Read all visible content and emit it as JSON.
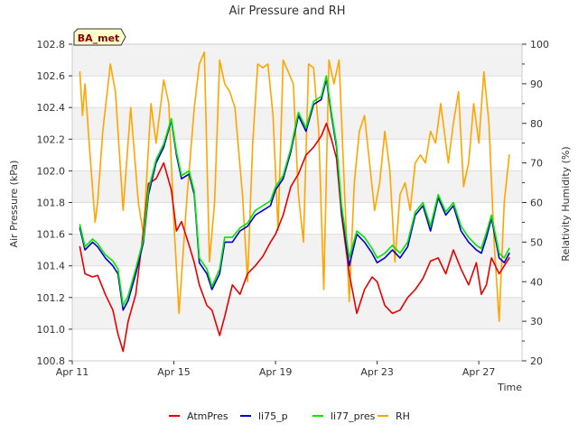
{
  "chart_data": {
    "type": "line",
    "title": "Air Pressure and RH",
    "site_badge": "BA_met",
    "xlabel": "Time",
    "ylabel_left": "Air Pressure (kPa)",
    "ylabel_right": "Relativity Humidity (%)",
    "xlim": [
      0,
      17.7
    ],
    "x_ticks": [
      {
        "x": 0,
        "label": "Apr 11"
      },
      {
        "x": 4,
        "label": "Apr 15"
      },
      {
        "x": 8,
        "label": "Apr 19"
      },
      {
        "x": 12,
        "label": "Apr 23"
      },
      {
        "x": 16,
        "label": "Apr 27"
      }
    ],
    "ylim_left": [
      100.8,
      102.8
    ],
    "yticks_left": [
      "100.8",
      "101.0",
      "101.2",
      "101.4",
      "101.6",
      "101.8",
      "102.0",
      "102.2",
      "102.4",
      "102.6",
      "102.8"
    ],
    "ylim_right": [
      20,
      100
    ],
    "yticks_right": [
      "20",
      "30",
      "40",
      "50",
      "60",
      "70",
      "80",
      "90",
      "100"
    ],
    "grid": true,
    "legend_position": "bottom",
    "series": [
      {
        "name": "AtmPres",
        "axis": "left",
        "color": "#e60000",
        "x": [
          0.3,
          0.5,
          0.8,
          1.0,
          1.3,
          1.6,
          1.8,
          2.0,
          2.2,
          2.5,
          2.8,
          3.0,
          3.3,
          3.6,
          3.9,
          4.1,
          4.3,
          4.6,
          4.8,
          5.0,
          5.3,
          5.5,
          5.8,
          6.0,
          6.3,
          6.6,
          6.9,
          7.2,
          7.5,
          7.8,
          8.0,
          8.3,
          8.6,
          8.9,
          9.2,
          9.5,
          9.8,
          10.0,
          10.2,
          10.4,
          10.6,
          10.9,
          11.2,
          11.5,
          11.8,
          12.0,
          12.3,
          12.6,
          12.9,
          13.2,
          13.5,
          13.8,
          14.1,
          14.4,
          14.7,
          15.0,
          15.3,
          15.6,
          15.9,
          16.1,
          16.3,
          16.5,
          16.8,
          17.0,
          17.2
        ],
        "values": [
          101.52,
          101.35,
          101.33,
          101.34,
          101.22,
          101.12,
          100.97,
          100.86,
          101.05,
          101.22,
          101.62,
          101.92,
          101.95,
          102.05,
          101.88,
          101.62,
          101.68,
          101.53,
          101.42,
          101.28,
          101.15,
          101.12,
          100.96,
          101.08,
          101.28,
          101.22,
          101.35,
          101.4,
          101.46,
          101.55,
          101.6,
          101.72,
          101.9,
          101.98,
          102.1,
          102.15,
          102.22,
          102.3,
          102.2,
          102.08,
          101.72,
          101.35,
          101.1,
          101.25,
          101.33,
          101.3,
          101.15,
          101.1,
          101.12,
          101.2,
          101.25,
          101.32,
          101.43,
          101.45,
          101.35,
          101.5,
          101.38,
          101.28,
          101.42,
          101.22,
          101.28,
          101.45,
          101.35,
          101.4,
          101.45
        ]
      },
      {
        "name": "li75_p",
        "axis": "left",
        "color": "#0000cc",
        "x": [
          0.3,
          0.5,
          0.8,
          1.0,
          1.3,
          1.6,
          1.8,
          2.0,
          2.2,
          2.5,
          2.8,
          3.0,
          3.3,
          3.6,
          3.9,
          4.1,
          4.3,
          4.6,
          4.8,
          5.0,
          5.3,
          5.5,
          5.8,
          6.0,
          6.3,
          6.6,
          6.9,
          7.2,
          7.5,
          7.8,
          8.0,
          8.3,
          8.6,
          8.9,
          9.2,
          9.5,
          9.8,
          10.0,
          10.2,
          10.4,
          10.6,
          10.9,
          11.2,
          11.5,
          11.8,
          12.0,
          12.3,
          12.6,
          12.9,
          13.2,
          13.5,
          13.8,
          14.1,
          14.4,
          14.7,
          15.0,
          15.3,
          15.6,
          15.9,
          16.1,
          16.3,
          16.5,
          16.8,
          17.0,
          17.2
        ],
        "values": [
          101.64,
          101.5,
          101.55,
          101.52,
          101.45,
          101.4,
          101.35,
          101.12,
          101.18,
          101.35,
          101.55,
          101.85,
          102.05,
          102.15,
          102.32,
          102.1,
          101.95,
          101.98,
          101.85,
          101.42,
          101.35,
          101.25,
          101.35,
          101.55,
          101.55,
          101.62,
          101.65,
          101.72,
          101.75,
          101.78,
          101.88,
          101.95,
          102.12,
          102.35,
          102.25,
          102.42,
          102.45,
          102.58,
          102.35,
          102.15,
          101.75,
          101.4,
          101.6,
          101.55,
          101.48,
          101.42,
          101.45,
          101.5,
          101.45,
          101.52,
          101.72,
          101.78,
          101.62,
          101.83,
          101.72,
          101.78,
          101.62,
          101.55,
          101.5,
          101.48,
          101.58,
          101.7,
          101.45,
          101.42,
          101.48
        ]
      },
      {
        "name": "li77_pres",
        "axis": "left",
        "color": "#00e600",
        "x": [
          0.3,
          0.5,
          0.8,
          1.0,
          1.3,
          1.6,
          1.8,
          2.0,
          2.2,
          2.5,
          2.8,
          3.0,
          3.3,
          3.6,
          3.9,
          4.1,
          4.3,
          4.6,
          4.8,
          5.0,
          5.3,
          5.5,
          5.8,
          6.0,
          6.3,
          6.6,
          6.9,
          7.2,
          7.5,
          7.8,
          8.0,
          8.3,
          8.6,
          8.9,
          9.2,
          9.5,
          9.8,
          10.0,
          10.2,
          10.4,
          10.6,
          10.9,
          11.2,
          11.5,
          11.8,
          12.0,
          12.3,
          12.6,
          12.9,
          13.2,
          13.5,
          13.8,
          14.1,
          14.4,
          14.7,
          15.0,
          15.3,
          15.6,
          15.9,
          16.1,
          16.3,
          16.5,
          16.8,
          17.0,
          17.2
        ],
        "values": [
          101.66,
          101.52,
          101.57,
          101.54,
          101.47,
          101.43,
          101.38,
          101.15,
          101.21,
          101.38,
          101.57,
          101.88,
          102.07,
          102.17,
          102.33,
          102.12,
          101.97,
          102.0,
          101.87,
          101.45,
          101.38,
          101.27,
          101.38,
          101.58,
          101.58,
          101.64,
          101.67,
          101.75,
          101.78,
          101.81,
          101.9,
          101.97,
          102.14,
          102.37,
          102.27,
          102.44,
          102.47,
          102.6,
          102.37,
          102.17,
          101.78,
          101.45,
          101.62,
          101.58,
          101.51,
          101.45,
          101.48,
          101.53,
          101.48,
          101.55,
          101.74,
          101.8,
          101.65,
          101.85,
          101.74,
          101.8,
          101.65,
          101.58,
          101.53,
          101.51,
          101.61,
          101.72,
          101.48,
          101.45,
          101.51
        ]
      },
      {
        "name": "RH",
        "axis": "right",
        "color": "#ffa500",
        "x": [
          0.3,
          0.4,
          0.5,
          0.7,
          0.9,
          1.0,
          1.2,
          1.5,
          1.7,
          2.0,
          2.3,
          2.6,
          2.8,
          3.1,
          3.3,
          3.6,
          3.8,
          4.0,
          4.2,
          4.5,
          4.8,
          5.0,
          5.2,
          5.4,
          5.6,
          5.8,
          6.0,
          6.2,
          6.4,
          6.7,
          6.9,
          7.1,
          7.3,
          7.5,
          7.7,
          7.9,
          8.1,
          8.3,
          8.5,
          8.7,
          8.9,
          9.1,
          9.3,
          9.5,
          9.7,
          9.9,
          10.1,
          10.3,
          10.5,
          10.7,
          10.9,
          11.1,
          11.3,
          11.5,
          11.7,
          11.9,
          12.1,
          12.3,
          12.5,
          12.7,
          12.9,
          13.1,
          13.3,
          13.5,
          13.7,
          13.9,
          14.1,
          14.3,
          14.5,
          14.8,
          15.0,
          15.2,
          15.4,
          15.6,
          15.8,
          16.0,
          16.2,
          16.4,
          16.6,
          16.8,
          17.0,
          17.2
        ],
        "values": [
          93,
          82,
          90,
          72,
          55,
          60,
          78,
          95,
          88,
          58,
          84,
          60,
          52,
          85,
          75,
          91,
          85,
          55,
          32,
          60,
          84,
          95,
          98,
          45,
          60,
          96,
          90,
          88,
          84,
          62,
          40,
          75,
          95,
          94,
          95,
          82,
          53,
          96,
          93,
          90,
          62,
          50,
          95,
          94,
          78,
          38,
          96,
          90,
          96,
          65,
          35,
          65,
          78,
          82,
          70,
          58,
          65,
          78,
          68,
          45,
          62,
          65,
          58,
          70,
          72,
          70,
          78,
          75,
          85,
          70,
          80,
          88,
          64,
          70,
          85,
          75,
          93,
          80,
          50,
          30,
          60,
          72
        ]
      }
    ]
  }
}
